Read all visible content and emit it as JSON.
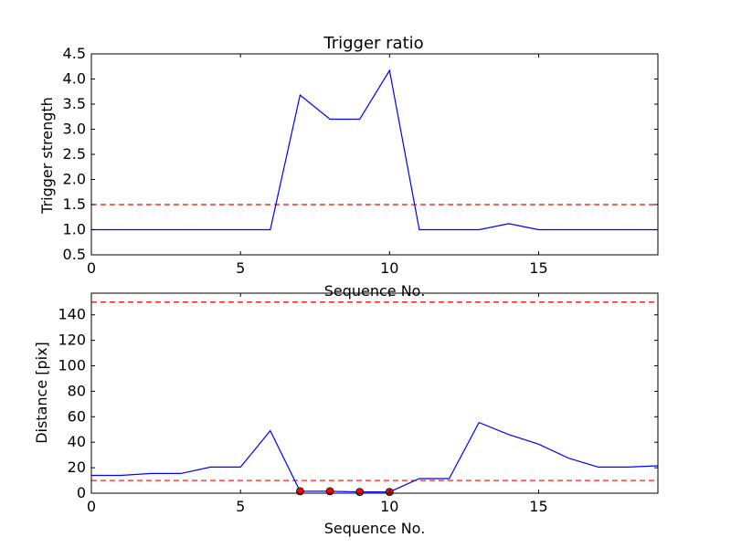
{
  "chart_data": [
    {
      "type": "line",
      "title": "Trigger ratio",
      "xlabel": "Sequence No.",
      "ylabel": "Trigger strength",
      "xlim": [
        0,
        19
      ],
      "ylim": [
        0.5,
        4.5
      ],
      "x_ticks": [
        "0",
        "5",
        "10",
        "15"
      ],
      "y_ticks": [
        "0.5",
        "1.0",
        "1.5",
        "2.0",
        "2.5",
        "3.0",
        "3.5",
        "4.0",
        "4.5"
      ],
      "grid": false,
      "series": [
        {
          "color": "#0000ff",
          "x": [
            0,
            1,
            2,
            3,
            4,
            5,
            6,
            7,
            8,
            9,
            10,
            11,
            12,
            13,
            14,
            15,
            16,
            17,
            18,
            19
          ],
          "y": [
            1.0,
            1.0,
            1.0,
            1.0,
            1.0,
            1.0,
            1.0,
            3.68,
            3.2,
            3.2,
            4.17,
            1.0,
            1.0,
            1.0,
            1.12,
            1.0,
            1.0,
            1.0,
            1.0,
            1.0
          ]
        }
      ],
      "threshold_lines": [
        {
          "y": 1.5,
          "color": "#ff0000",
          "style": "dashed"
        }
      ]
    },
    {
      "type": "line",
      "title": "",
      "xlabel": "Sequence No.",
      "ylabel": "Distance [pix]",
      "xlim": [
        0,
        19
      ],
      "ylim": [
        0,
        157
      ],
      "x_ticks": [
        "0",
        "5",
        "10",
        "15"
      ],
      "y_ticks": [
        "0",
        "20",
        "40",
        "60",
        "80",
        "100",
        "120",
        "140"
      ],
      "grid": false,
      "series": [
        {
          "color": "#0000ff",
          "x": [
            0,
            1,
            2,
            3,
            4,
            5,
            6,
            7,
            8,
            9,
            10,
            11,
            12,
            13,
            14,
            15,
            16,
            17,
            18,
            19
          ],
          "y": [
            14,
            14,
            15.5,
            15.5,
            20.5,
            20.5,
            49,
            1.5,
            1.5,
            1,
            1,
            11.5,
            11.5,
            55.5,
            46,
            38.5,
            27.5,
            20.5,
            20.5,
            21.5
          ]
        }
      ],
      "markers": {
        "color": "#ff0000",
        "x": [
          7,
          8,
          9,
          10
        ],
        "y": [
          1.5,
          1.5,
          1,
          1
        ]
      },
      "threshold_lines": [
        {
          "y": 10,
          "color": "#ff0000",
          "style": "dashed"
        },
        {
          "y": 150,
          "color": "#ff0000",
          "style": "dashed"
        }
      ]
    }
  ]
}
